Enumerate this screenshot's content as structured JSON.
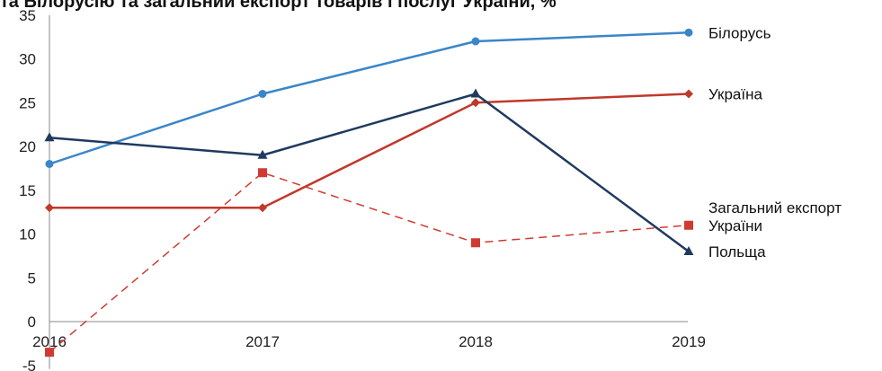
{
  "chart_data": {
    "type": "line",
    "title": "та Білорусію та загальний експорт товарів і послуг України, %",
    "xlabel": "",
    "ylabel": "",
    "categories": [
      "2016",
      "2017",
      "2018",
      "2019"
    ],
    "y_ticks": [
      "-5",
      "0",
      "5",
      "10",
      "15",
      "20",
      "25",
      "30",
      "35"
    ],
    "ylim": [
      -5,
      35
    ],
    "grid": false,
    "legend": "inline-right",
    "series": [
      {
        "name": "Білорусь",
        "values": [
          18,
          26,
          32,
          33
        ],
        "color": "#3a86c8",
        "marker": "circle",
        "dashed": false
      },
      {
        "name": "Україна",
        "values": [
          13,
          13,
          25,
          26
        ],
        "color": "#c0392b",
        "marker": "diamond",
        "dashed": false
      },
      {
        "name": "Загальний експорт\nУкраїни",
        "values": [
          -3.5,
          17,
          9,
          11
        ],
        "color": "#d03a32",
        "marker": "square",
        "dashed": true
      },
      {
        "name": "Польща",
        "values": [
          21,
          19,
          26,
          8
        ],
        "color": "#1f3a5f",
        "marker": "triangle",
        "dashed": false
      }
    ]
  }
}
